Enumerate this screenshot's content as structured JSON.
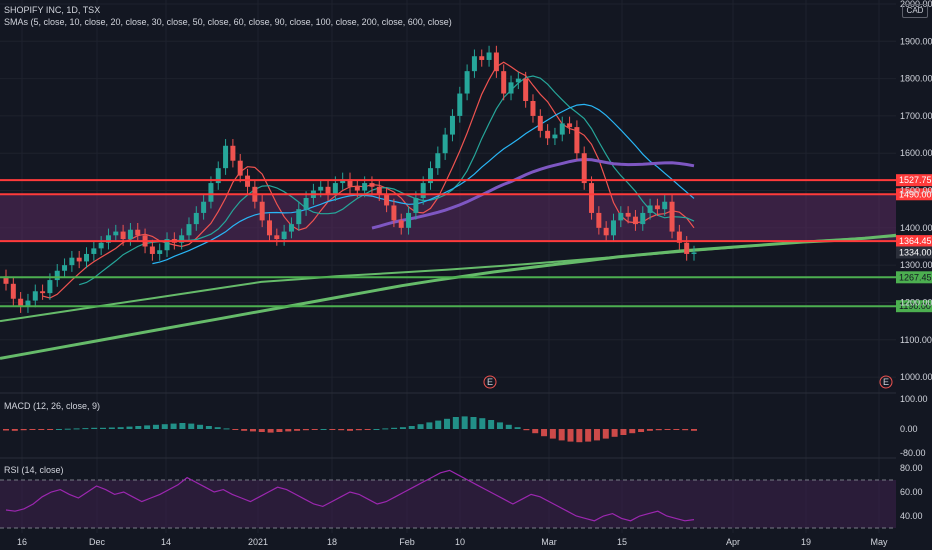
{
  "header": {
    "title": "SHOPIFY INC, 1D, TSX",
    "smas": "SMAs (5, close, 10, close, 20, close, 30, close, 50, close, 60, close, 90, close, 100, close, 200, close, 600, close)",
    "macd": "MACD (12, 26, close, 9)",
    "rsi": "RSI (14, close)",
    "currency": "CAD"
  },
  "colors": {
    "background": "#131722",
    "up": "#26a69a",
    "down": "#ef5350",
    "resistance": "#ff3b3b",
    "support": "#4caf50",
    "zone": "#5a2a5e",
    "sma_purple": "#7e57c2",
    "sma_green": "#66bb6a",
    "rsi_line": "#9c27b0"
  },
  "chart_data": [
    {
      "type": "candlestick",
      "title": "SHOPIFY INC, 1D, TSX",
      "x_ticks": [
        "16",
        "Dec",
        "14",
        "2021",
        "18",
        "Feb",
        "10",
        "Mar",
        "15",
        "Apr",
        "19",
        "May"
      ],
      "y_ticks": [
        "1000.00",
        "1100.00",
        "1200.00",
        "1300.00",
        "1400.00",
        "1500.00",
        "1600.00",
        "1700.00",
        "1800.00",
        "1900.00",
        "2000.00"
      ],
      "ylim": [
        960,
        2000
      ],
      "levels": [
        {
          "value": 1527.75,
          "label": "1527.75",
          "kind": "resistance"
        },
        {
          "value": 1490.0,
          "label": "1490.00",
          "kind": "resistance"
        },
        {
          "value": 1364.45,
          "label": "1364.45",
          "kind": "resistance"
        },
        {
          "value": 1334.0,
          "label": "1334.00",
          "kind": "last"
        },
        {
          "value": 1267.45,
          "label": "1267.45",
          "kind": "support"
        },
        {
          "value": 1190.0,
          "label": "1190.00",
          "kind": "support"
        }
      ],
      "zone": [
        1364.45,
        1490.0
      ],
      "ohlc_close": [
        1250,
        1210,
        1190,
        1205,
        1230,
        1225,
        1260,
        1285,
        1300,
        1320,
        1310,
        1330,
        1345,
        1360,
        1380,
        1390,
        1370,
        1395,
        1380,
        1350,
        1330,
        1340,
        1370,
        1360,
        1380,
        1410,
        1440,
        1470,
        1520,
        1560,
        1620,
        1580,
        1540,
        1510,
        1470,
        1420,
        1380,
        1370,
        1390,
        1410,
        1450,
        1480,
        1500,
        1510,
        1490,
        1520,
        1530,
        1510,
        1500,
        1520,
        1510,
        1490,
        1460,
        1420,
        1400,
        1440,
        1480,
        1520,
        1560,
        1600,
        1650,
        1700,
        1760,
        1820,
        1860,
        1850,
        1870,
        1820,
        1760,
        1790,
        1800,
        1740,
        1700,
        1660,
        1640,
        1650,
        1680,
        1670,
        1600,
        1520,
        1440,
        1400,
        1380,
        1420,
        1440,
        1430,
        1410,
        1440,
        1460,
        1450,
        1470,
        1390,
        1360,
        1330,
        1334
      ],
      "series": [
        {
          "name": "SMA 200",
          "values": [
            1050,
            1065,
            1080,
            1095,
            1110,
            1125,
            1140,
            1155,
            1170,
            1185,
            1200,
            1215,
            1230,
            1245,
            1258,
            1270,
            1282,
            1292,
            1302,
            1312,
            1322,
            1330,
            1338,
            1344,
            1350,
            1356,
            1362,
            1366,
            1372,
            1380
          ]
        },
        {
          "name": "SMA 600",
          "values": [
            1150,
            1165,
            1180,
            1195,
            1210,
            1225,
            1240,
            1255,
            1262,
            1270,
            1276,
            1282,
            1288,
            1295,
            1302,
            1310,
            1318,
            1326,
            1334,
            1342,
            1350,
            1358,
            1366,
            1372,
            1378
          ]
        }
      ]
    },
    {
      "type": "bar",
      "title": "MACD (12, 26, close, 9)",
      "y_ticks": [
        "100.00",
        "0.00",
        "-80.00"
      ],
      "ylim": [
        -90,
        110
      ],
      "histogram": [
        -5,
        -6,
        -4,
        -3,
        -2,
        -1,
        0,
        1,
        2,
        3,
        4,
        4,
        5,
        6,
        8,
        10,
        12,
        14,
        16,
        18,
        20,
        18,
        14,
        10,
        6,
        2,
        -2,
        -6,
        -8,
        -10,
        -12,
        -10,
        -8,
        -6,
        -4,
        -2,
        0,
        -2,
        -4,
        -6,
        -4,
        -2,
        0,
        2,
        4,
        6,
        10,
        16,
        22,
        28,
        34,
        40,
        42,
        40,
        36,
        30,
        22,
        14,
        6,
        -4,
        -14,
        -24,
        -32,
        -38,
        -42,
        -44,
        -42,
        -38,
        -32,
        -26,
        -20,
        -14,
        -10,
        -6,
        -4,
        -2,
        -2,
        -4,
        -6
      ]
    },
    {
      "type": "line",
      "title": "RSI (14, close)",
      "y_ticks": [
        "80.00",
        "60.00",
        "40.00"
      ],
      "ylim": [
        25,
        85
      ],
      "bands": [
        30,
        70
      ],
      "values": [
        45,
        44,
        46,
        50,
        56,
        60,
        62,
        58,
        55,
        60,
        65,
        62,
        58,
        60,
        56,
        52,
        55,
        58,
        62,
        66,
        72,
        68,
        64,
        60,
        62,
        58,
        55,
        52,
        56,
        60,
        64,
        62,
        58,
        54,
        50,
        48,
        52,
        56,
        60,
        58,
        54,
        50,
        52,
        56,
        60,
        64,
        68,
        72,
        76,
        78,
        74,
        70,
        66,
        62,
        58,
        54,
        50,
        54,
        58,
        56,
        52,
        48,
        44,
        40,
        38,
        36,
        40,
        42,
        38,
        36,
        40,
        42,
        44,
        40,
        38,
        36,
        37
      ]
    }
  ]
}
